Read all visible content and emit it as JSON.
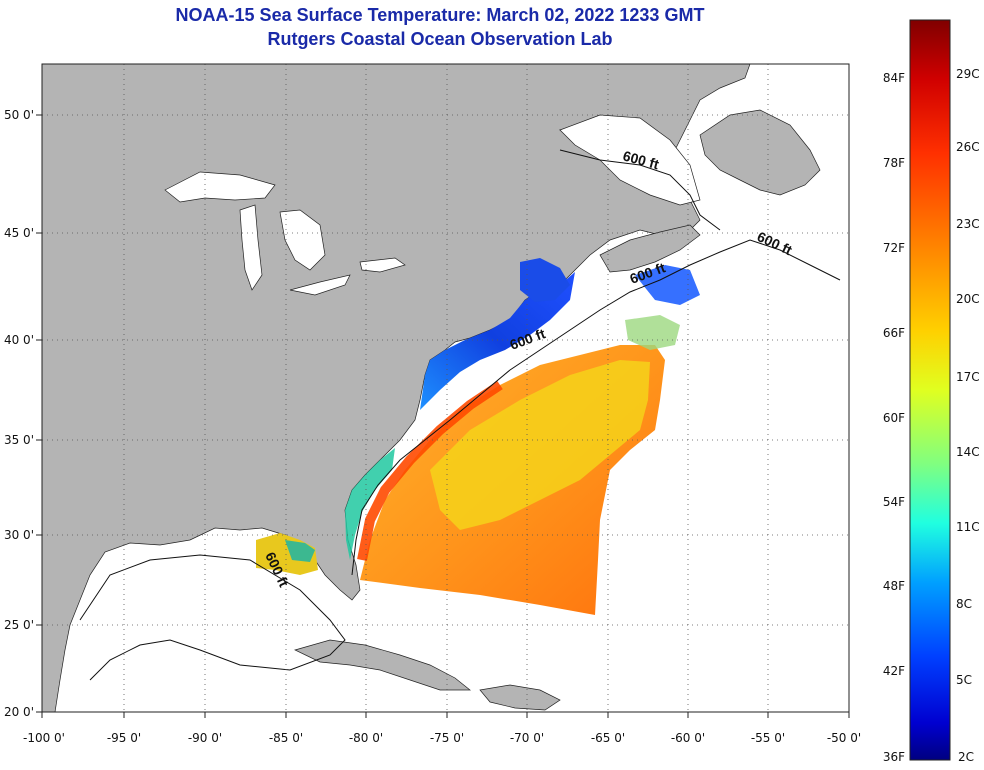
{
  "header": {
    "title": "NOAA-15 Sea Surface Temperature:  March 02, 2022 1233 GMT",
    "subtitle": "Rutgers Coastal Ocean Observation Lab"
  },
  "map": {
    "lon_range": [
      -100,
      -50
    ],
    "lat_range": [
      20,
      52
    ],
    "lon_ticks": [
      "-100 0'",
      "-95 0'",
      "-90 0'",
      "-85 0'",
      "-80 0'",
      "-75 0'",
      "-70 0'",
      "-65 0'",
      "-60 0'",
      "-55 0'",
      "-50 0'"
    ],
    "lat_ticks": [
      "20 0'",
      "25 0'",
      "30 0'",
      "35 0'",
      "40 0'",
      "45 0'",
      "50 0'"
    ],
    "land_color": "#b4b4b4",
    "ocean_color": "#ffffff",
    "grid": "dotted"
  },
  "isobath_labels": [
    "600 ft",
    "600 ft",
    "600 ft",
    "600 ft",
    "600 ft"
  ],
  "colorbar": {
    "f_labels": [
      "84F",
      "78F",
      "72F",
      "66F",
      "60F",
      "54F",
      "48F",
      "42F",
      "36F"
    ],
    "c_labels": [
      "29C",
      "26C",
      "23C",
      "20C",
      "17C",
      "14C",
      "11C",
      "8C",
      "5C",
      "2C"
    ],
    "colors": [
      "#800000",
      "#d00000",
      "#ff3000",
      "#ff8000",
      "#ffd000",
      "#e0ff20",
      "#80ff80",
      "#20ffe0",
      "#00a0ff",
      "#0040ff",
      "#0000d0",
      "#000080"
    ]
  }
}
